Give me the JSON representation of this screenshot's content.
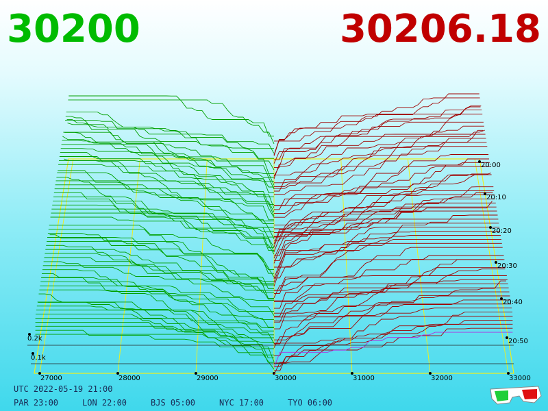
{
  "header": {
    "bid": "30200",
    "ask": "30206.18"
  },
  "price_axis": {
    "labels": [
      "27000",
      "28000",
      "29000",
      "30000",
      "31000",
      "32000",
      "33000"
    ]
  },
  "time_axis": {
    "labels": [
      "20:00",
      "20:10",
      "20:20",
      "20:30",
      "20:40",
      "20:50"
    ]
  },
  "depth_axis": {
    "labels": [
      "0.2k",
      "0.1k"
    ]
  },
  "footer": {
    "utc": "UTC 2022-05-19 21:00",
    "cities": [
      "PAR 23:00",
      "LON 22:00",
      "BJS 05:00",
      "NYC 17:00",
      "TYO 06:00"
    ]
  }
}
